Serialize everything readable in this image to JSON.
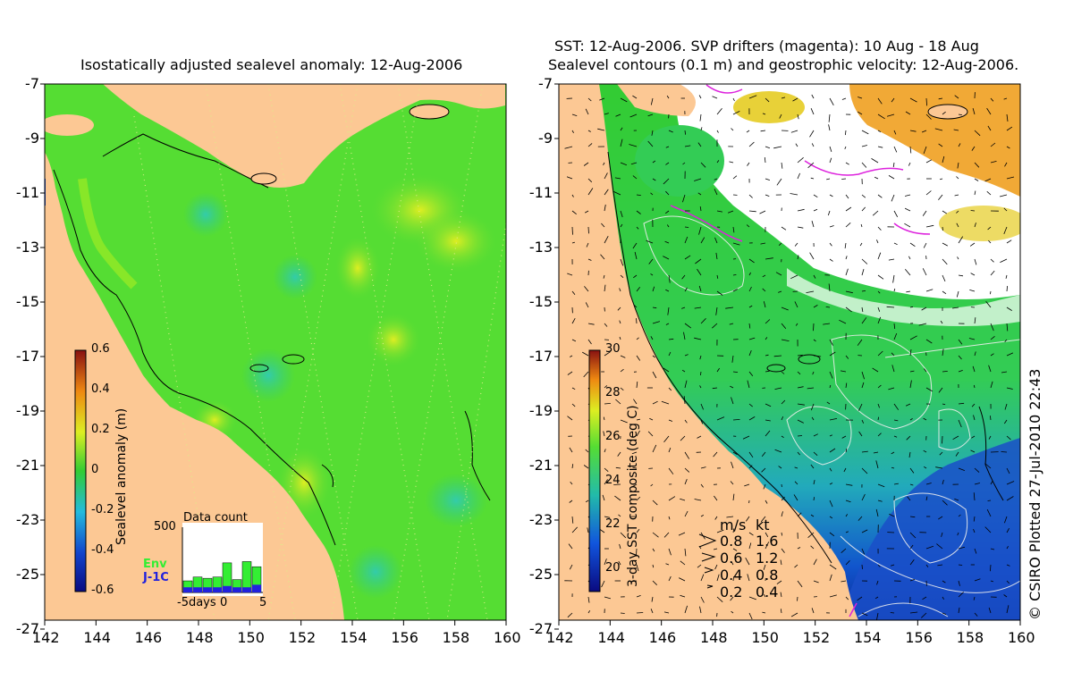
{
  "left_panel": {
    "title": "Isostatically adjusted sealevel anomaly: 12-Aug-2006",
    "lat_ticks": [
      "-7",
      "-9",
      "-11",
      "-13",
      "-15",
      "-17",
      "-19",
      "-21",
      "-23",
      "-25",
      "-27"
    ],
    "lon_ticks": [
      "142",
      "144",
      "146",
      "148",
      "150",
      "152",
      "154",
      "156",
      "158",
      "160"
    ],
    "colorbar": {
      "label": "Sealevel anomaly (m)",
      "ticks": [
        "0.6",
        "0.4",
        "0.2",
        "0",
        "-0.2",
        "-0.4",
        "-0.6"
      ],
      "range": [
        -0.6,
        0.6
      ]
    },
    "data_count": {
      "title": "Data count",
      "ymax_label": "500",
      "x_labels": [
        "-5days",
        "0",
        "5"
      ],
      "legend": [
        {
          "label": "Env",
          "color": "#33ee33"
        },
        {
          "label": "J-1C",
          "color": "#2222dd"
        }
      ],
      "env_counts": [
        90,
        120,
        110,
        120,
        230,
        100,
        240,
        200
      ],
      "j1c_counts": [
        40,
        40,
        40,
        40,
        50,
        40,
        40,
        60
      ]
    }
  },
  "right_panel": {
    "title_line1": "SST: 12-Aug-2006. SVP drifters (magenta): 10 Aug - 18 Aug",
    "title_line2": "Sealevel contours (0.1 m) and geostrophic velocity: 12-Aug-2006.",
    "lat_ticks": [
      "-7",
      "-9",
      "-11",
      "-13",
      "-15",
      "-17",
      "-19",
      "-21",
      "-23",
      "-25",
      "-27"
    ],
    "lon_ticks": [
      "142",
      "144",
      "146",
      "148",
      "150",
      "152",
      "154",
      "156",
      "158",
      "160"
    ],
    "colorbar": {
      "label": "3-day SST composite (deg C)",
      "ticks": [
        "30",
        "28",
        "26",
        "24",
        "22",
        "20"
      ],
      "range": [
        19,
        30
      ]
    },
    "velocity_legend": {
      "header_ms": "m/s",
      "header_kt": "kt",
      "rows": [
        {
          "ms": "0.8",
          "kt": "1.6"
        },
        {
          "ms": "0.6",
          "kt": "1.2"
        },
        {
          "ms": "0.4",
          "kt": "0.8"
        },
        {
          "ms": "0.2",
          "kt": "0.4"
        }
      ]
    }
  },
  "credit": "© CSIRO Plotted 27-Jul-2010 22:43",
  "colors": {
    "land": "#fcc894",
    "ocean_green": "#33dd33",
    "ocean_yellow": "#ccee22",
    "cloud_white": "#ffffff",
    "deep_blue": "#1133bb",
    "drifter": "#dd22dd"
  }
}
